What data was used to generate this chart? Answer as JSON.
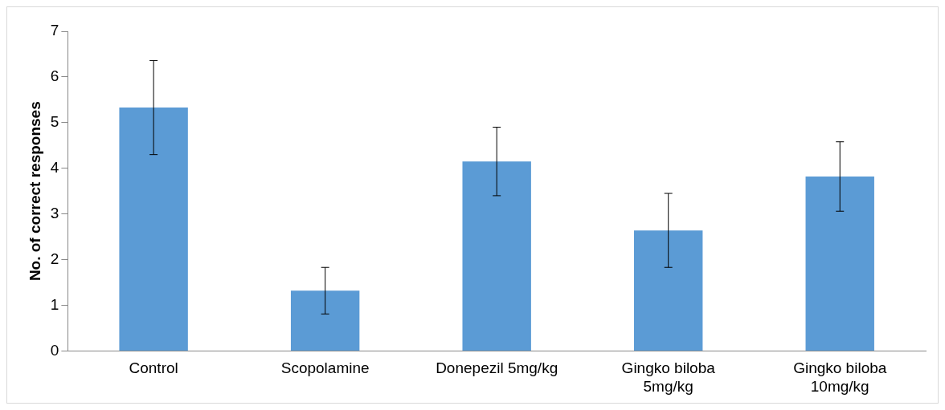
{
  "chart_data": {
    "type": "bar",
    "ylabel": "No. of correct responses",
    "categories": [
      "Control",
      "Scopolamine",
      "Donepezil 5mg/kg",
      "Gingko biloba 5mg/kg",
      "Gingko biloba 10mg/kg"
    ],
    "values": [
      5.33,
      1.32,
      4.15,
      2.64,
      3.82
    ],
    "errors": [
      1.03,
      0.51,
      0.75,
      0.81,
      0.76
    ],
    "color": "#5b9bd5",
    "ylim": [
      0,
      7
    ],
    "yticks": [
      0,
      1,
      2,
      3,
      4,
      5,
      6,
      7
    ],
    "grid": false,
    "legend": false
  }
}
